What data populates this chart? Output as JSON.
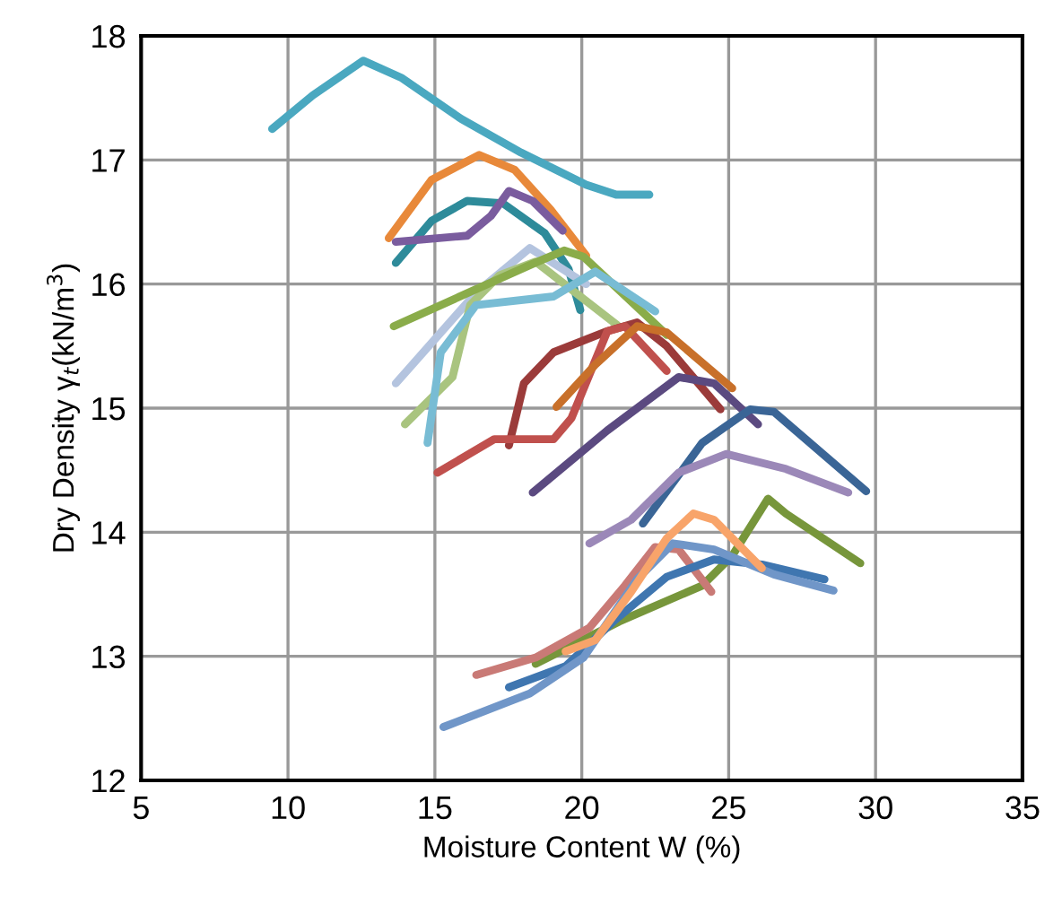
{
  "chart_data": {
    "type": "line",
    "xlabel": "Moisture Content W (%)",
    "ylabel": "Dry Density γ$_{t}$(kN/m$^{3}$)",
    "xlim": [
      5,
      35
    ],
    "xticks": [
      5,
      10,
      15,
      20,
      25,
      30,
      35
    ],
    "ylim": [
      12,
      18
    ],
    "yticks": [
      12,
      13,
      14,
      15,
      16,
      17,
      18
    ],
    "grid": true,
    "legend": false,
    "marker": "none",
    "line_style": "solid",
    "series": [
      {
        "color": "#4aa8c0",
        "x": [
          9.46,
          10.84,
          12.56,
          13.88,
          15.9,
          17.93,
          20.15,
          21.17,
          22.3
        ],
        "values": [
          17.25,
          17.52,
          17.8,
          17.66,
          17.33,
          17.06,
          16.8,
          16.72,
          16.72
        ]
      },
      {
        "color": "#e8893a",
        "x": [
          13.43,
          14.89,
          16.51,
          17.72,
          18.94,
          20.15
        ],
        "values": [
          16.37,
          16.84,
          17.04,
          16.92,
          16.6,
          16.23
        ]
      },
      {
        "color": "#2e8b9a",
        "x": [
          13.67,
          14.89,
          16.1,
          17.32,
          18.74,
          19.55,
          19.95
        ],
        "values": [
          16.17,
          16.51,
          16.67,
          16.65,
          16.41,
          16.12,
          15.79
        ]
      },
      {
        "color": "#7a5c9e",
        "x": [
          13.67,
          16.1,
          16.91,
          17.52,
          18.33,
          19.35
        ],
        "values": [
          16.34,
          16.39,
          16.55,
          16.75,
          16.67,
          16.43
        ]
      },
      {
        "color": "#b4c4df",
        "x": [
          13.67,
          16.4,
          18.23,
          20.15
        ],
        "values": [
          15.2,
          15.93,
          16.29,
          16.0
        ]
      },
      {
        "color": "#a9c47f",
        "x": [
          13.98,
          15.6,
          16.2,
          17.2,
          18.43,
          21.2
        ],
        "values": [
          14.87,
          15.25,
          15.83,
          16.07,
          16.18,
          15.67
        ]
      },
      {
        "color": "#8aac4a",
        "x": [
          13.6,
          18.4,
          19.4,
          20.06,
          22.9
        ],
        "values": [
          15.66,
          16.17,
          16.27,
          16.22,
          15.59
        ]
      },
      {
        "color": "#78bcd4",
        "x": [
          14.75,
          15.2,
          16.4,
          19.04,
          20.46,
          22.5
        ],
        "values": [
          14.72,
          15.45,
          15.83,
          15.9,
          16.1,
          15.78
        ]
      },
      {
        "color": "#9b3b3a",
        "x": [
          17.52,
          18.03,
          19.04,
          20.87,
          21.88,
          22.89,
          24.72
        ],
        "values": [
          14.7,
          15.2,
          15.45,
          15.62,
          15.69,
          15.5,
          14.99
        ]
      },
      {
        "color": "#c0504d",
        "x": [
          15.09,
          17.02,
          19.04,
          19.65,
          20.87,
          21.47,
          22.89
        ],
        "values": [
          14.48,
          14.75,
          14.75,
          14.92,
          15.62,
          15.66,
          15.3
        ]
      },
      {
        "color": "#c8702a",
        "x": [
          19.14,
          20.46,
          21.88,
          22.89,
          25.12
        ],
        "values": [
          15.01,
          15.35,
          15.66,
          15.61,
          15.16
        ]
      },
      {
        "color": "#5b4a80",
        "x": [
          18.33,
          20.87,
          23.3,
          24.5,
          26.0
        ],
        "values": [
          14.32,
          14.82,
          15.25,
          15.2,
          14.87
        ]
      },
      {
        "color": "#3a6596",
        "x": [
          22.08,
          24.1,
          25.73,
          26.54,
          29.68
        ],
        "values": [
          14.07,
          14.72,
          14.99,
          14.97,
          14.33
        ]
      },
      {
        "color": "#9b88b8",
        "x": [
          20.26,
          21.68,
          23.3,
          24.92,
          26.95,
          29.07
        ],
        "values": [
          13.91,
          14.1,
          14.48,
          14.63,
          14.51,
          14.32
        ]
      },
      {
        "color": "#77963b",
        "x": [
          18.43,
          21.27,
          24.1,
          25.12,
          26.34,
          26.95,
          29.48
        ],
        "values": [
          12.94,
          13.28,
          13.57,
          13.81,
          14.27,
          14.15,
          13.75
        ]
      },
      {
        "color": "#c97a76",
        "x": [
          16.41,
          18.43,
          20.26,
          21.47,
          22.49,
          23.3,
          24.41
        ],
        "values": [
          12.85,
          12.99,
          13.23,
          13.57,
          13.88,
          13.86,
          13.52
        ]
      },
      {
        "color": "#3f76b0",
        "x": [
          17.52,
          19.45,
          21.07,
          22.89,
          24.5,
          26.13,
          28.26
        ],
        "values": [
          12.75,
          12.92,
          13.28,
          13.64,
          13.78,
          13.74,
          13.62
        ]
      },
      {
        "color": "#7096c8",
        "x": [
          15.29,
          18.23,
          20.06,
          21.88,
          23.1,
          24.5,
          26.54,
          28.57
        ],
        "values": [
          12.43,
          12.7,
          12.99,
          13.62,
          13.91,
          13.86,
          13.66,
          13.53
        ]
      },
      {
        "color": "#f8a46a",
        "x": [
          19.45,
          20.46,
          21.68,
          22.89,
          23.8,
          24.5,
          26.13
        ],
        "values": [
          13.04,
          13.13,
          13.52,
          13.95,
          14.15,
          14.1,
          13.71
        ]
      }
    ]
  }
}
